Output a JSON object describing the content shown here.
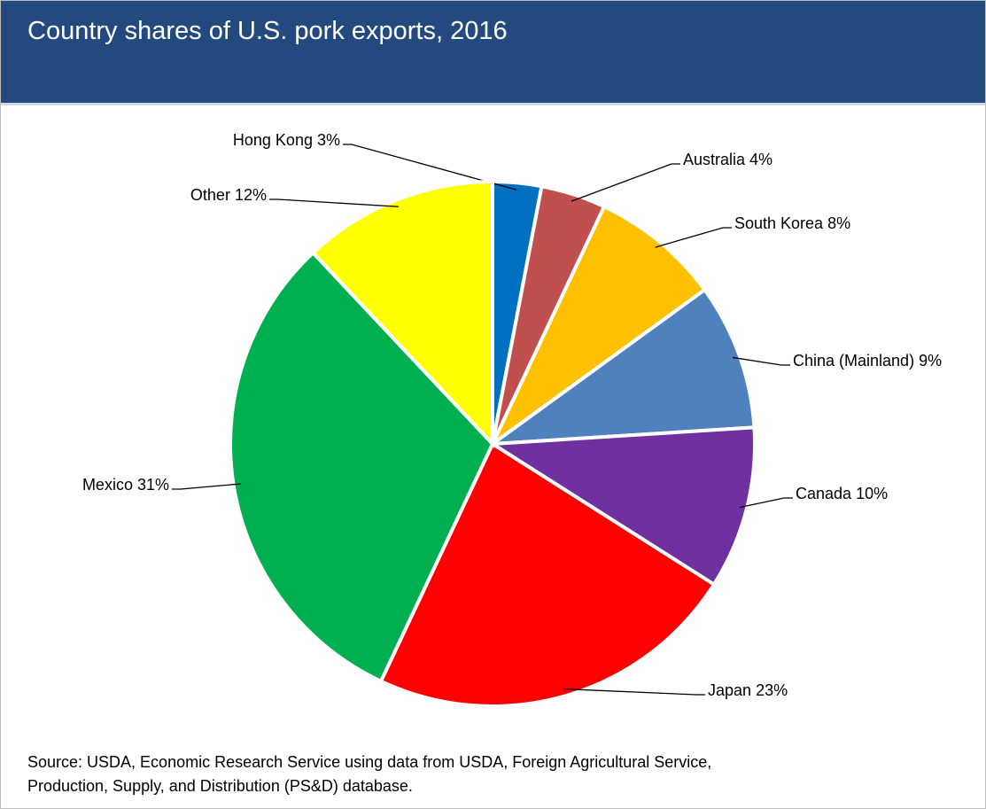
{
  "chart_data": {
    "type": "pie",
    "title": "Country shares of U.S. pork exports, 2016",
    "categories": [
      "Hong Kong",
      "Australia",
      "South Korea",
      "China (Mainland)",
      "Canada",
      "Japan",
      "Mexico",
      "Other"
    ],
    "values": [
      3,
      4,
      8,
      9,
      10,
      23,
      31,
      12
    ],
    "value_labels": [
      "3%",
      "4%",
      "8%",
      "9%",
      "10%",
      "23%",
      "31%",
      "12%"
    ],
    "colors": [
      "#0070c0",
      "#c0504d",
      "#ffc000",
      "#4f81bd",
      "#7030a0",
      "#ff0000",
      "#00b050",
      "#ffff00"
    ],
    "source": "Source: USDA, Economic Research Service using data from USDA, Foreign Agricultural Service, Production, Supply, and Distribution (PS&D) database."
  }
}
